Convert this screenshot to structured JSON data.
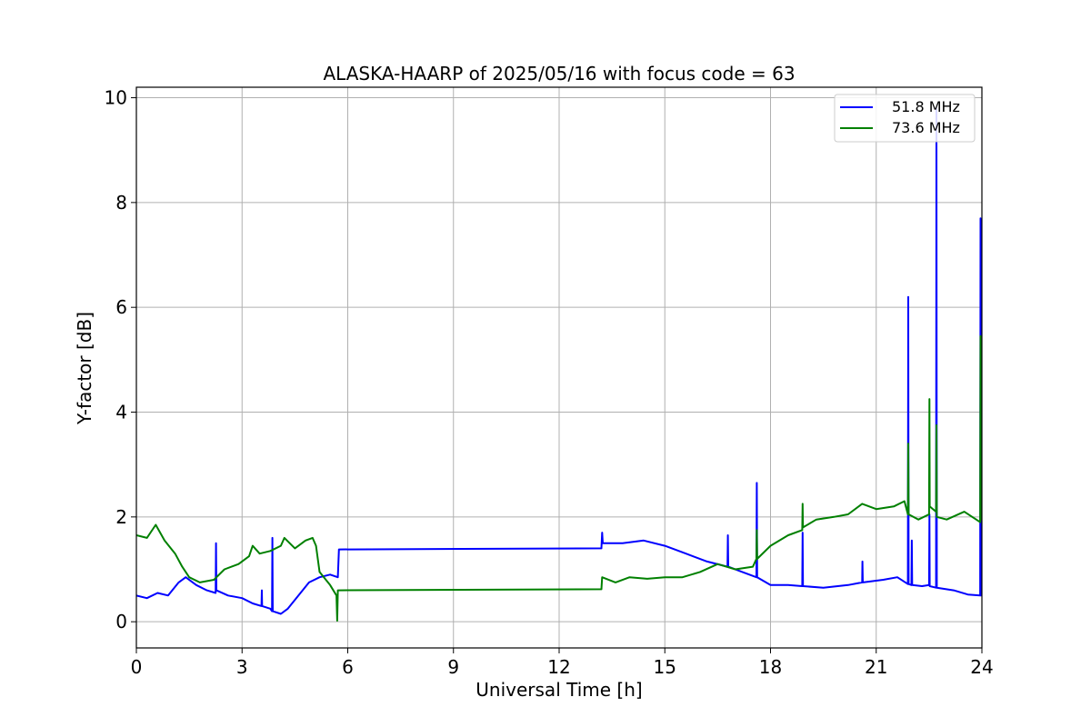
{
  "chart_data": {
    "type": "line",
    "title": "ALASKA-HAARP of 2025/05/16 with focus code = 63",
    "xlabel": "Universal Time [h]",
    "ylabel": "Y-factor [dB]",
    "xlim": [
      0,
      24
    ],
    "ylim": [
      -0.5,
      10.2
    ],
    "xticks": [
      0,
      3,
      6,
      9,
      12,
      15,
      18,
      21,
      24
    ],
    "yticks": [
      0,
      2,
      4,
      6,
      8,
      10
    ],
    "grid": true,
    "legend_position": "top-right",
    "series": [
      {
        "name": "51.8 MHz",
        "color": "#0000ff",
        "points": [
          [
            0,
            0.5
          ],
          [
            0.3,
            0.45
          ],
          [
            0.6,
            0.55
          ],
          [
            0.9,
            0.5
          ],
          [
            1.2,
            0.75
          ],
          [
            1.4,
            0.85
          ],
          [
            1.7,
            0.7
          ],
          [
            2.0,
            0.6
          ],
          [
            2.25,
            0.55
          ],
          [
            2.26,
            1.5
          ],
          [
            2.27,
            0.6
          ],
          [
            2.6,
            0.5
          ],
          [
            3.0,
            0.45
          ],
          [
            3.3,
            0.35
          ],
          [
            3.55,
            0.3
          ],
          [
            3.56,
            0.6
          ],
          [
            3.57,
            0.3
          ],
          [
            3.8,
            0.25
          ],
          [
            3.85,
            0.2
          ],
          [
            3.86,
            1.6
          ],
          [
            3.87,
            0.2
          ],
          [
            4.1,
            0.15
          ],
          [
            4.3,
            0.25
          ],
          [
            4.6,
            0.5
          ],
          [
            4.9,
            0.75
          ],
          [
            5.2,
            0.85
          ],
          [
            5.5,
            0.9
          ],
          [
            5.72,
            0.85
          ],
          [
            5.75,
            1.38
          ],
          [
            13.2,
            1.4
          ],
          [
            13.22,
            1.7
          ],
          [
            13.24,
            1.5
          ],
          [
            13.8,
            1.5
          ],
          [
            14.4,
            1.55
          ],
          [
            15.0,
            1.45
          ],
          [
            15.6,
            1.3
          ],
          [
            16.2,
            1.15
          ],
          [
            16.78,
            1.05
          ],
          [
            16.79,
            1.65
          ],
          [
            16.8,
            1.05
          ],
          [
            17.2,
            0.95
          ],
          [
            17.6,
            0.85
          ],
          [
            17.61,
            2.65
          ],
          [
            17.62,
            0.85
          ],
          [
            18.0,
            0.7
          ],
          [
            18.5,
            0.7
          ],
          [
            18.9,
            0.68
          ],
          [
            18.91,
            1.7
          ],
          [
            18.92,
            0.68
          ],
          [
            19.5,
            0.65
          ],
          [
            20.2,
            0.7
          ],
          [
            20.6,
            0.75
          ],
          [
            20.61,
            1.15
          ],
          [
            20.62,
            0.75
          ],
          [
            21.2,
            0.8
          ],
          [
            21.6,
            0.85
          ],
          [
            21.9,
            0.72
          ],
          [
            21.91,
            6.2
          ],
          [
            21.92,
            0.72
          ],
          [
            22.0,
            0.7
          ],
          [
            22.01,
            1.55
          ],
          [
            22.02,
            0.7
          ],
          [
            22.3,
            0.68
          ],
          [
            22.5,
            0.7
          ],
          [
            22.51,
            2.05
          ],
          [
            22.52,
            0.68
          ],
          [
            22.7,
            0.65
          ],
          [
            22.71,
            9.8
          ],
          [
            22.72,
            0.65
          ],
          [
            23.2,
            0.6
          ],
          [
            23.6,
            0.52
          ],
          [
            23.95,
            0.5
          ],
          [
            23.96,
            7.7
          ],
          [
            23.97,
            0.5
          ],
          [
            24.0,
            0.5
          ]
        ]
      },
      {
        "name": "73.6 MHz",
        "color": "#008000",
        "points": [
          [
            0,
            1.65
          ],
          [
            0.3,
            1.6
          ],
          [
            0.55,
            1.85
          ],
          [
            0.8,
            1.55
          ],
          [
            1.1,
            1.3
          ],
          [
            1.3,
            1.05
          ],
          [
            1.5,
            0.85
          ],
          [
            1.8,
            0.75
          ],
          [
            2.2,
            0.8
          ],
          [
            2.5,
            1.0
          ],
          [
            2.9,
            1.1
          ],
          [
            3.2,
            1.25
          ],
          [
            3.3,
            1.45
          ],
          [
            3.5,
            1.3
          ],
          [
            3.8,
            1.35
          ],
          [
            4.1,
            1.45
          ],
          [
            4.2,
            1.6
          ],
          [
            4.5,
            1.4
          ],
          [
            4.8,
            1.55
          ],
          [
            5.0,
            1.6
          ],
          [
            5.1,
            1.45
          ],
          [
            5.2,
            0.95
          ],
          [
            5.5,
            0.7
          ],
          [
            5.68,
            0.5
          ],
          [
            5.7,
            0.02
          ],
          [
            5.72,
            0.6
          ],
          [
            13.2,
            0.62
          ],
          [
            13.22,
            0.85
          ],
          [
            13.6,
            0.75
          ],
          [
            14.0,
            0.85
          ],
          [
            14.5,
            0.82
          ],
          [
            15.0,
            0.85
          ],
          [
            15.5,
            0.85
          ],
          [
            16.0,
            0.95
          ],
          [
            16.5,
            1.1
          ],
          [
            17.0,
            1.0
          ],
          [
            17.5,
            1.05
          ],
          [
            17.6,
            1.2
          ],
          [
            17.61,
            1.75
          ],
          [
            17.62,
            1.2
          ],
          [
            18.0,
            1.45
          ],
          [
            18.5,
            1.65
          ],
          [
            18.9,
            1.75
          ],
          [
            18.91,
            2.25
          ],
          [
            18.92,
            1.8
          ],
          [
            19.3,
            1.95
          ],
          [
            19.8,
            2.0
          ],
          [
            20.2,
            2.05
          ],
          [
            20.6,
            2.25
          ],
          [
            21.0,
            2.15
          ],
          [
            21.5,
            2.2
          ],
          [
            21.8,
            2.3
          ],
          [
            21.9,
            2.05
          ],
          [
            21.91,
            3.4
          ],
          [
            21.92,
            2.05
          ],
          [
            22.2,
            1.95
          ],
          [
            22.5,
            2.05
          ],
          [
            22.51,
            4.25
          ],
          [
            22.52,
            2.2
          ],
          [
            22.7,
            2.1
          ],
          [
            22.71,
            3.75
          ],
          [
            22.72,
            2.0
          ],
          [
            23.0,
            1.95
          ],
          [
            23.5,
            2.1
          ],
          [
            23.95,
            1.9
          ],
          [
            23.96,
            5.45
          ],
          [
            23.97,
            1.95
          ],
          [
            24.0,
            1.95
          ]
        ]
      }
    ]
  }
}
